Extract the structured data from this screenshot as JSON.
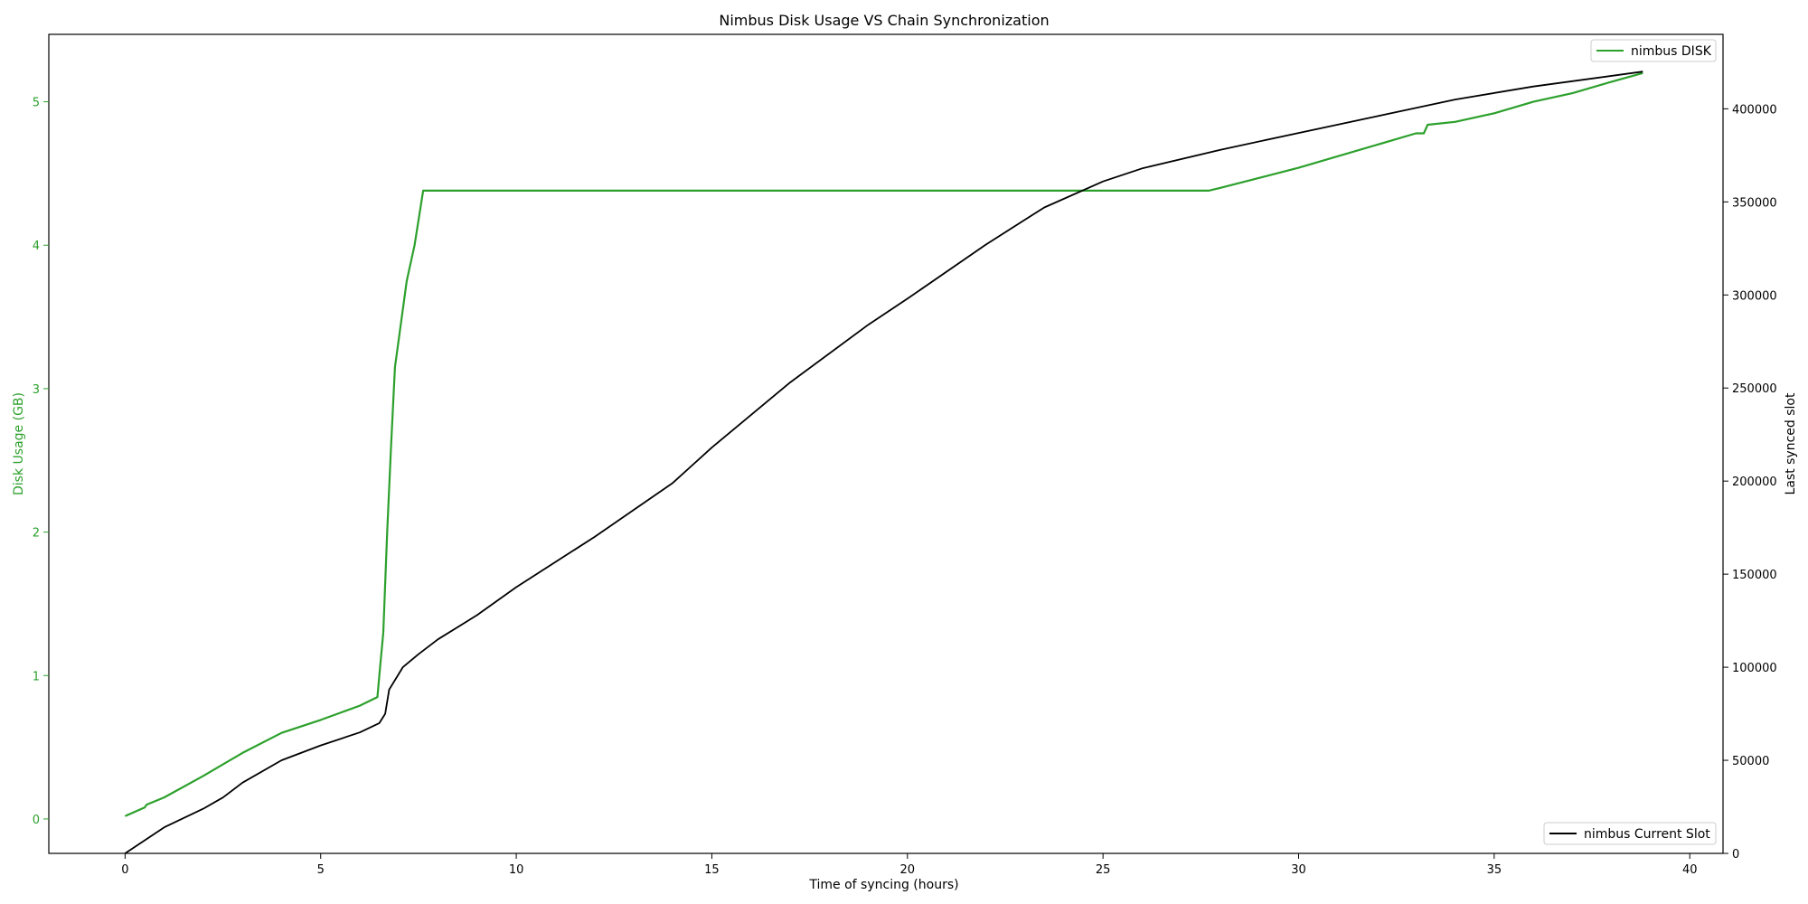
{
  "chart_data": {
    "type": "line",
    "title": "Nimbus Disk Usage VS Chain Synchronization",
    "xlabel": "Time of syncing (hours)",
    "ylabel_left": "Disk Usage (GB)",
    "ylabel_right": "Last synced slot",
    "xlim": [
      -1.95,
      40.85
    ],
    "ylim_left": [
      -0.24,
      5.47
    ],
    "ylim_right": [
      0,
      440000
    ],
    "x_ticks": [
      0,
      5,
      10,
      15,
      20,
      25,
      30,
      35,
      40
    ],
    "y_left_ticks": [
      0,
      1,
      2,
      3,
      4,
      5
    ],
    "y_right_ticks": [
      0,
      50000,
      100000,
      150000,
      200000,
      250000,
      300000,
      350000,
      400000
    ],
    "grid": false,
    "colors": {
      "disk": "#2ca02c",
      "slot": "#000000",
      "axis": "#000000"
    },
    "series": [
      {
        "name": "nimbus DISK",
        "axis": "left",
        "legend_position": "top-right",
        "x": [
          0,
          0.5,
          0.55,
          1,
          2,
          3,
          4,
          5,
          5.5,
          6,
          6.45,
          6.5,
          6.6,
          6.7,
          6.8,
          6.9,
          7.05,
          7.2,
          7.4,
          7.62,
          10,
          15,
          20,
          25,
          27.7,
          28,
          30,
          33,
          33.2,
          33.3,
          34,
          35,
          36,
          37,
          38,
          38.8
        ],
        "y": [
          0.02,
          0.08,
          0.1,
          0.15,
          0.3,
          0.46,
          0.6,
          0.69,
          0.74,
          0.79,
          0.85,
          1.0,
          1.3,
          2.0,
          2.6,
          3.15,
          3.45,
          3.75,
          4.0,
          4.38,
          4.38,
          4.38,
          4.38,
          4.38,
          4.38,
          4.4,
          4.54,
          4.78,
          4.78,
          4.84,
          4.86,
          4.92,
          5.0,
          5.06,
          5.14,
          5.2
        ]
      },
      {
        "name": "nimbus Current Slot",
        "axis": "right",
        "legend_position": "bottom-right",
        "x": [
          0,
          0.5,
          1,
          2,
          2.5,
          3,
          4,
          5,
          6,
          6.5,
          6.65,
          6.75,
          7.1,
          7.5,
          8,
          9,
          10,
          12,
          14,
          15,
          17,
          19,
          20,
          22,
          23.5,
          25,
          26,
          28,
          30,
          32,
          34,
          36,
          38.8
        ],
        "y": [
          0,
          7000,
          14000,
          24000,
          30000,
          38000,
          50000,
          58000,
          65000,
          70000,
          75000,
          88000,
          100000,
          107000,
          115000,
          128000,
          143000,
          170000,
          199000,
          218000,
          253000,
          284000,
          298000,
          327000,
          347000,
          361000,
          368000,
          378000,
          387000,
          396000,
          405000,
          412000,
          420000
        ]
      }
    ]
  }
}
